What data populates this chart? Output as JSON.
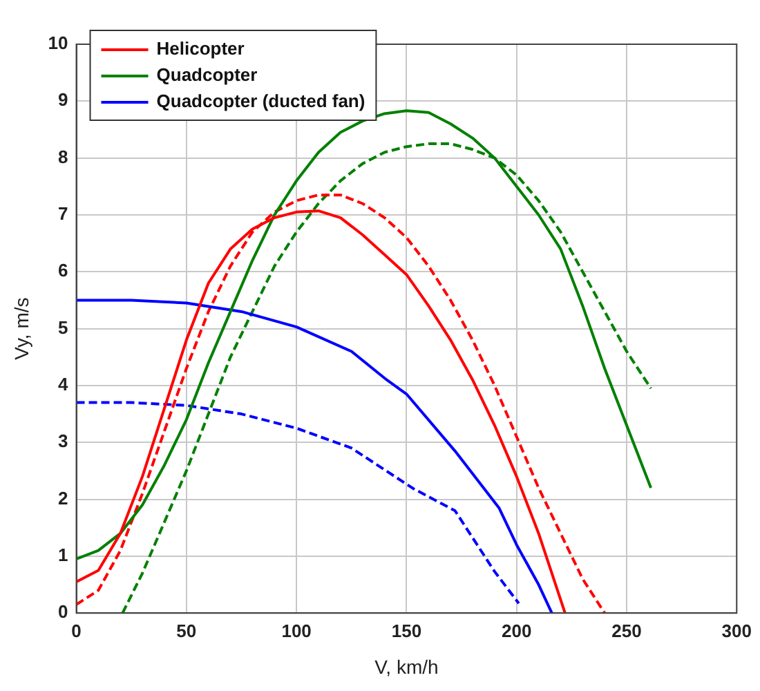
{
  "chart_data": {
    "type": "line",
    "xlabel": "V, km/h",
    "ylabel": "Vy, m/s",
    "xlim": [
      0,
      300
    ],
    "xticks": [
      0,
      50,
      100,
      150,
      200,
      250,
      300
    ],
    "ylim": [
      0,
      10
    ],
    "yticks": [
      0,
      1,
      2,
      3,
      4,
      5,
      6,
      7,
      8,
      9,
      10
    ],
    "grid": true,
    "legend": "top left",
    "marker": "none",
    "series": [
      {
        "name": "Helicopter",
        "color": "#ff0000",
        "line_style": "solid",
        "x": [
          0,
          10,
          20,
          30,
          40,
          50,
          60,
          70,
          80,
          90,
          100,
          110,
          120,
          130,
          140,
          150,
          160,
          170,
          180,
          190,
          200,
          210,
          222
        ],
        "values": [
          0.55,
          0.75,
          1.4,
          2.4,
          3.6,
          4.8,
          5.8,
          6.4,
          6.75,
          6.95,
          7.05,
          7.07,
          6.95,
          6.65,
          6.3,
          5.95,
          5.4,
          4.8,
          4.1,
          3.3,
          2.4,
          1.4,
          0
        ]
      },
      {
        "name": "Quadcopter",
        "color": "#008000",
        "line_style": "solid",
        "x": [
          0,
          10,
          20,
          30,
          40,
          50,
          60,
          70,
          80,
          90,
          100,
          110,
          120,
          130,
          140,
          150,
          160,
          170,
          180,
          190,
          200,
          210,
          220,
          230,
          240,
          250,
          261
        ],
        "values": [
          0.95,
          1.1,
          1.4,
          1.9,
          2.6,
          3.4,
          4.4,
          5.3,
          6.2,
          7.0,
          7.6,
          8.1,
          8.45,
          8.65,
          8.78,
          8.83,
          8.8,
          8.6,
          8.35,
          8.0,
          7.5,
          7.0,
          6.4,
          5.4,
          4.3,
          3.3,
          2.2
        ]
      },
      {
        "name": "Quadcopter (ducted fan)",
        "color": "#0000ff",
        "line_style": "solid",
        "x": [
          0,
          25,
          50,
          75,
          100,
          125,
          141,
          150,
          172,
          192,
          200,
          210,
          216
        ],
        "values": [
          5.5,
          5.5,
          5.45,
          5.3,
          5.03,
          4.6,
          4.1,
          3.85,
          2.85,
          1.85,
          1.2,
          0.5,
          0
        ]
      },
      {
        "color": "#ff0000",
        "line_style": "dashed",
        "x": [
          0,
          10,
          20,
          30,
          40,
          50,
          60,
          70,
          80,
          90,
          100,
          110,
          120,
          130,
          140,
          150,
          160,
          170,
          180,
          190,
          200,
          210,
          220,
          230,
          240
        ],
        "values": [
          0.15,
          0.4,
          1.1,
          2.1,
          3.2,
          4.3,
          5.3,
          6.1,
          6.7,
          7.05,
          7.25,
          7.35,
          7.35,
          7.2,
          6.95,
          6.6,
          6.1,
          5.5,
          4.8,
          4.0,
          3.1,
          2.2,
          1.4,
          0.6,
          0
        ]
      },
      {
        "color": "#008000",
        "line_style": "dashed",
        "x": [
          21,
          30,
          40,
          50,
          60,
          70,
          80,
          90,
          100,
          110,
          120,
          130,
          140,
          150,
          160,
          170,
          180,
          190,
          200,
          210,
          220,
          230,
          240,
          250,
          261
        ],
        "values": [
          0,
          0.7,
          1.6,
          2.5,
          3.5,
          4.5,
          5.3,
          6.1,
          6.7,
          7.2,
          7.6,
          7.9,
          8.1,
          8.2,
          8.25,
          8.25,
          8.15,
          8.0,
          7.7,
          7.25,
          6.7,
          6.0,
          5.3,
          4.6,
          3.95
        ]
      },
      {
        "color": "#0000ff",
        "line_style": "dashed",
        "x": [
          0,
          25,
          50,
          75,
          100,
          125,
          153,
          172,
          190,
          201
        ],
        "values": [
          3.7,
          3.7,
          3.65,
          3.5,
          3.25,
          2.9,
          2.19,
          1.8,
          0.73,
          0.17
        ]
      }
    ]
  }
}
